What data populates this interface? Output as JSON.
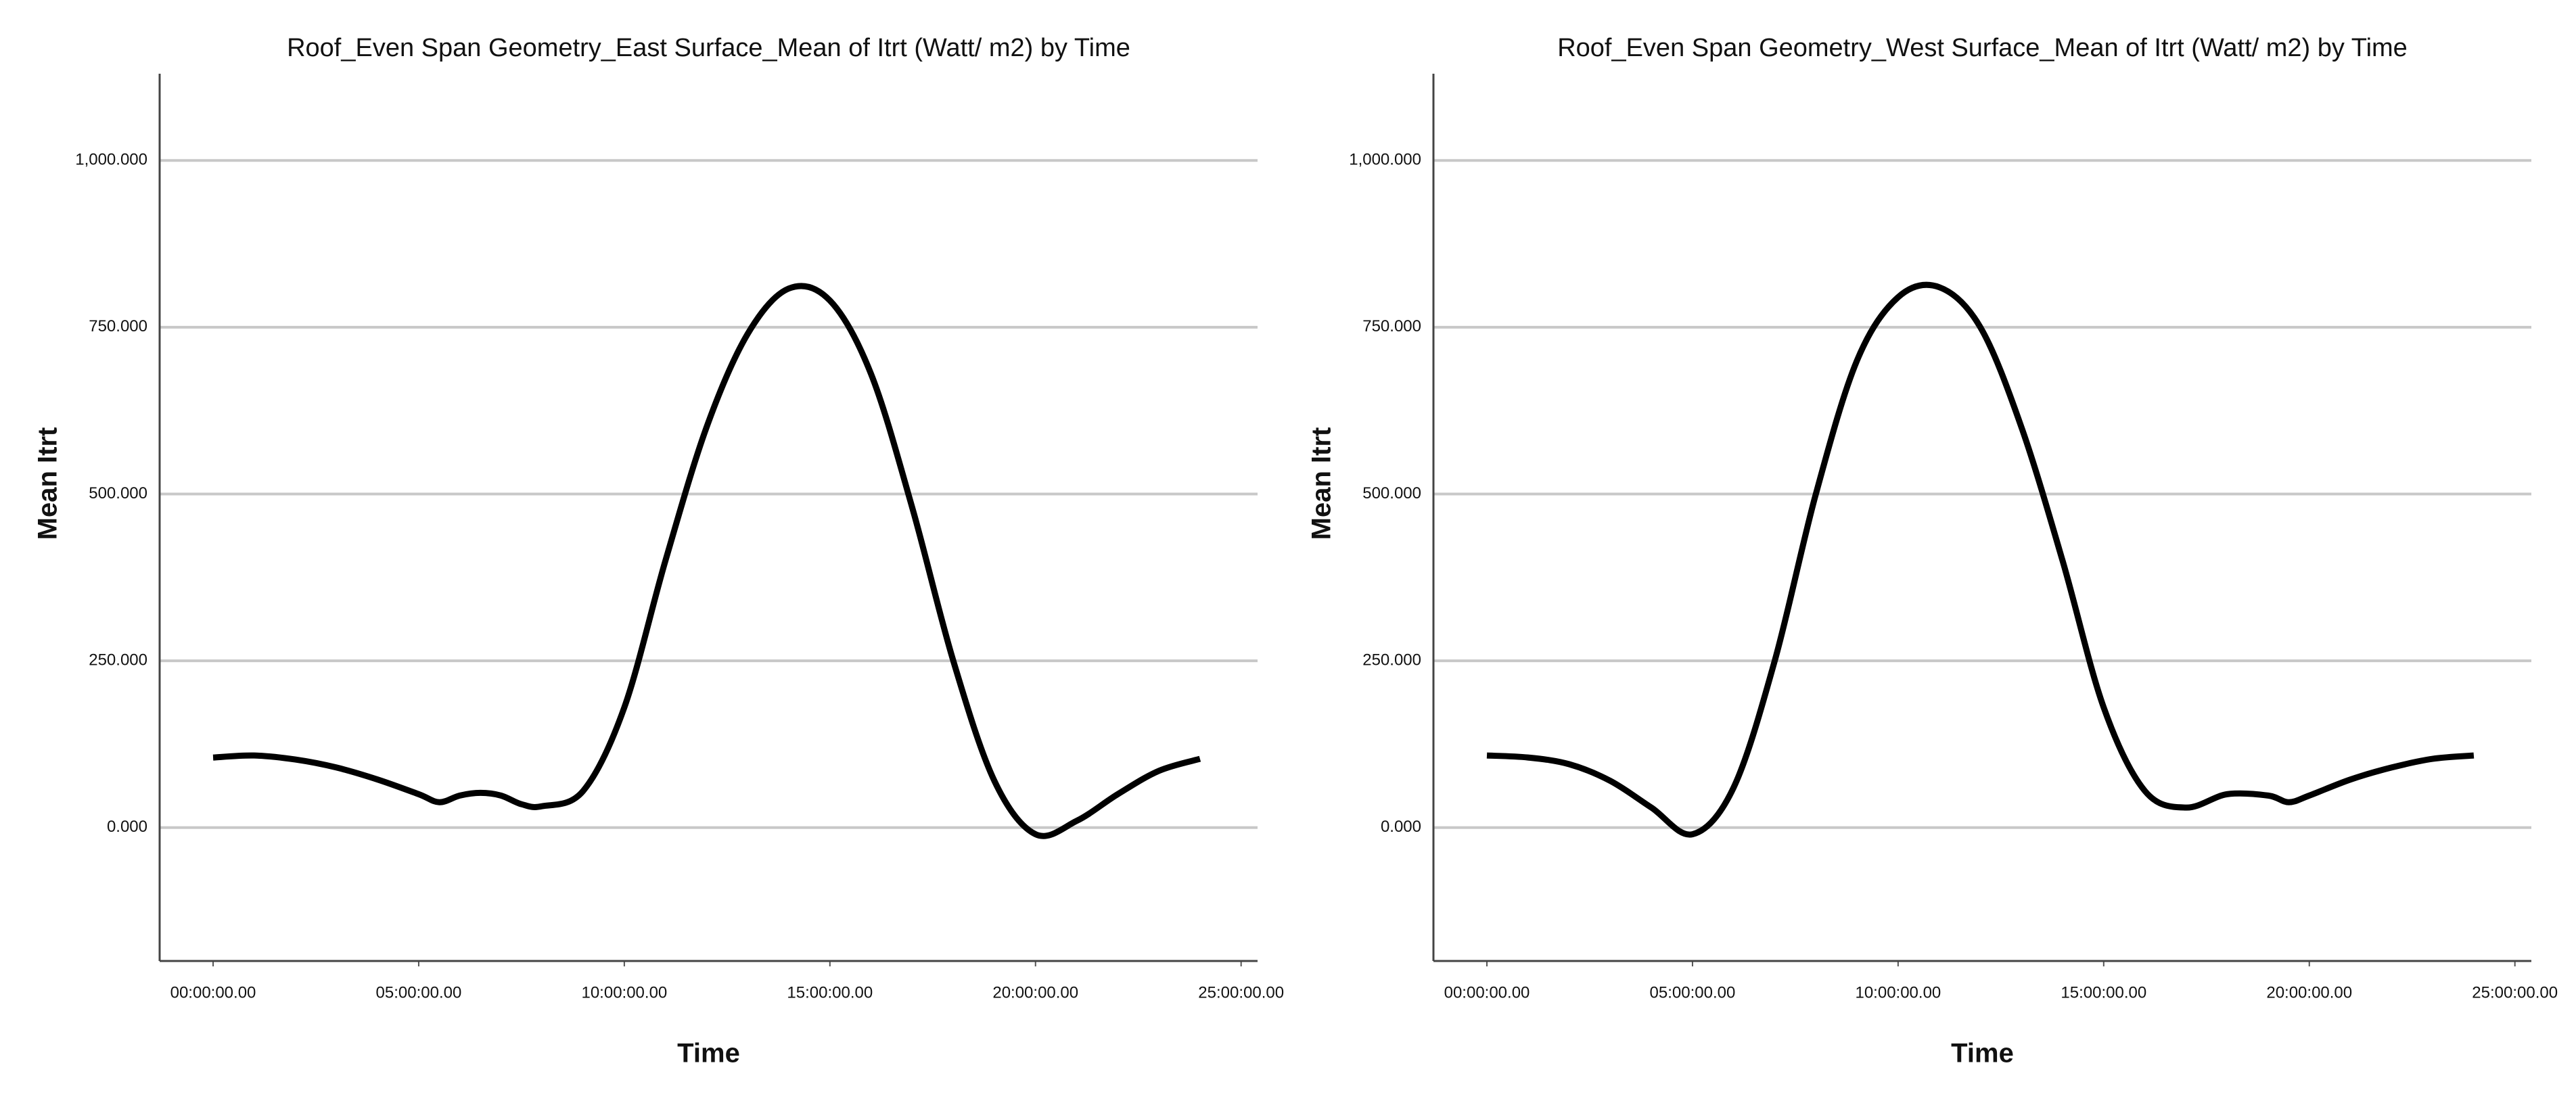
{
  "chart_data": [
    {
      "type": "line",
      "title": "Roof_Even Span Geometry_East Surface_Mean of Itrt (Watt/ m2) by Time",
      "x_label": "Time",
      "y_label": "Mean Itrt",
      "x": [
        0,
        1,
        2,
        3,
        4,
        5,
        5.5,
        6,
        6.5,
        7,
        7.5,
        8,
        9,
        10,
        11,
        12,
        13,
        14,
        15,
        16,
        17,
        18,
        19,
        20,
        21,
        22,
        23,
        24
      ],
      "series": [
        {
          "name": "Mean Itrt",
          "color": "#000000",
          "values": [
            105,
            108,
            102,
            90,
            72,
            50,
            38,
            48,
            52,
            48,
            35,
            32,
            55,
            180,
            400,
            600,
            740,
            808,
            790,
            680,
            480,
            250,
            70,
            -10,
            10,
            50,
            85,
            103
          ]
        }
      ],
      "xlim": [
        -1.3,
        25.4
      ],
      "xticks": [
        {
          "value": 0,
          "label": "00:00:00.00"
        },
        {
          "value": 5,
          "label": "05:00:00.00"
        },
        {
          "value": 10,
          "label": "10:00:00.00"
        },
        {
          "value": 15,
          "label": "15:00:00.00"
        },
        {
          "value": 20,
          "label": "20:00:00.00"
        },
        {
          "value": 25,
          "label": "25:00:00.00"
        }
      ],
      "ylim": [
        -200,
        1130
      ],
      "yticks": [
        {
          "value": 0,
          "label": "0.000"
        },
        {
          "value": 250,
          "label": "250.000"
        },
        {
          "value": 500,
          "label": "500.000"
        },
        {
          "value": 750,
          "label": "750.000"
        },
        {
          "value": 1000,
          "label": "1,000.000"
        }
      ],
      "grid": true
    },
    {
      "type": "line",
      "title": "Roof_Even Span Geometry_West Surface_Mean of Itrt (Watt/ m2) by Time",
      "x_label": "Time",
      "y_label": "Mean Itrt",
      "x": [
        0,
        1,
        2,
        3,
        4,
        5,
        6,
        7,
        8,
        9,
        10,
        11,
        12,
        13,
        14,
        15,
        16,
        17,
        18,
        19,
        19.5,
        20,
        21,
        22,
        23,
        24
      ],
      "series": [
        {
          "name": "Mean Itrt",
          "color": "#000000",
          "values": [
            108,
            105,
            95,
            70,
            30,
            -10,
            60,
            250,
            500,
            700,
            795,
            810,
            750,
            600,
            400,
            180,
            55,
            30,
            50,
            48,
            38,
            48,
            72,
            90,
            103,
            108
          ]
        }
      ],
      "xlim": [
        -1.3,
        25.4
      ],
      "xticks": [
        {
          "value": 0,
          "label": "00:00:00.00"
        },
        {
          "value": 5,
          "label": "05:00:00.00"
        },
        {
          "value": 10,
          "label": "10:00:00.00"
        },
        {
          "value": 15,
          "label": "15:00:00.00"
        },
        {
          "value": 20,
          "label": "20:00:00.00"
        },
        {
          "value": 25,
          "label": "25:00:00.00"
        }
      ],
      "ylim": [
        -200,
        1130
      ],
      "yticks": [
        {
          "value": 0,
          "label": "0.000"
        },
        {
          "value": 250,
          "label": "250.000"
        },
        {
          "value": 500,
          "label": "500.000"
        },
        {
          "value": 750,
          "label": "750.000"
        },
        {
          "value": 1000,
          "label": "1,000.000"
        }
      ],
      "grid": true
    }
  ]
}
